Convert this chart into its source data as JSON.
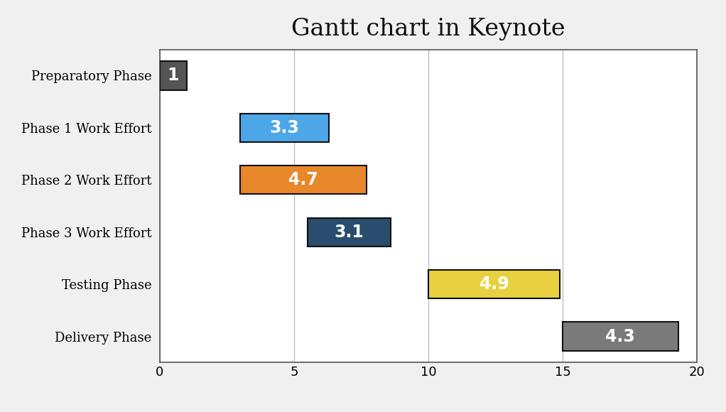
{
  "title": "Gantt chart in Keynote",
  "title_fontsize": 24,
  "title_fontfamily": "serif",
  "categories": [
    "Preparatory Phase",
    "Phase 1 Work Effort",
    "Phase 2 Work Effort",
    "Phase 3 Work Effort",
    "Testing Phase",
    "Delivery Phase"
  ],
  "starts": [
    0,
    3,
    3,
    5.5,
    10,
    15
  ],
  "durations": [
    1,
    3.3,
    4.7,
    3.1,
    4.9,
    4.3
  ],
  "bar_colors": [
    "#555555",
    "#4da6e8",
    "#e8882a",
    "#2a4d6e",
    "#e8d040",
    "#7a7a7a"
  ],
  "bar_labels": [
    "1",
    "3.3",
    "4.7",
    "3.1",
    "4.9",
    "4.3"
  ],
  "label_colors": [
    "white",
    "white",
    "white",
    "white",
    "white",
    "white"
  ],
  "xlim": [
    0,
    20
  ],
  "xticks": [
    0,
    5,
    10,
    15,
    20
  ],
  "bar_height": 0.55,
  "fig_background": "#f0f0f0",
  "plot_background": "#ffffff",
  "edgecolor": "#111111",
  "label_fontsize": 17,
  "tick_fontsize": 13,
  "ylabel_fontsize": 13,
  "grid_color": "#bbbbbb",
  "spine_color": "#555555"
}
